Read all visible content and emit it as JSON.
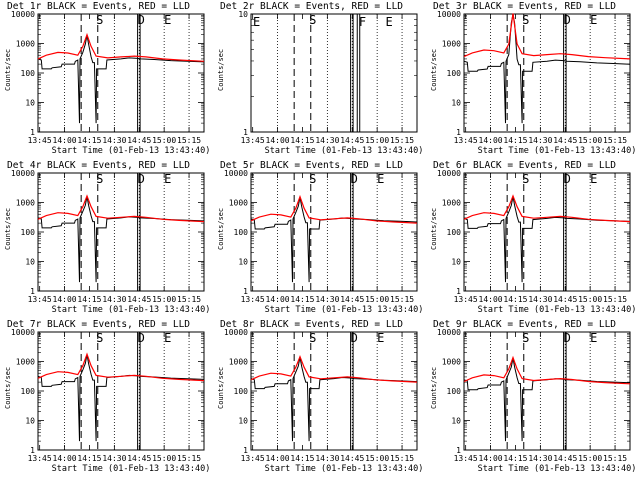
{
  "figure": {
    "title_suffix": "BLACK = Events, RED = LLD",
    "xlabel": "Start Time (01-Feb-13 13:43:40)",
    "ylabel": "Counts/sec",
    "x_ticks": [
      "13:45",
      "14:00",
      "14:15",
      "14:30",
      "14:45",
      "15:00",
      "15:15"
    ],
    "y_ticks": [
      "1",
      "10",
      "100",
      "1000",
      "10000"
    ],
    "colors": {
      "events": "#000000",
      "lld": "#ff0000",
      "axes": "#000000"
    }
  },
  "chart_data": [
    {
      "type": "line",
      "title": "Det 1r BLACK = Events, RED = LLD",
      "has_data": true,
      "base": 250,
      "peak": 1900,
      "red_plateau": 500,
      "flare_lbl": "S",
      "end_lbls": [
        "E"
      ],
      "ylim": [
        1,
        10000
      ],
      "ylog": true,
      "xlim": [
        "13:43:40",
        "15:24"
      ]
    },
    {
      "type": "line",
      "title": "Det 2r BLACK = Events, RED = LLD",
      "has_data": false,
      "base": 0,
      "peak": 0,
      "red_plateau": 0,
      "flare_lbl": "S",
      "end_lbls": [
        "F",
        "E"
      ],
      "top_lbl": "E",
      "ylim": [
        1,
        10
      ],
      "ylog": true,
      "xlim": [
        "13:43:40",
        "15:24"
      ]
    },
    {
      "type": "line",
      "title": "Det 3r BLACK = Events, RED = LLD",
      "has_data": true,
      "base": 210,
      "peak": 10000,
      "red_plateau": 600,
      "flare_lbl": "S",
      "end_lbls": [
        "E"
      ],
      "ylim": [
        1,
        10000
      ],
      "ylog": true,
      "xlim": [
        "13:43:40",
        "15:24"
      ]
    },
    {
      "type": "line",
      "title": "Det 4r BLACK = Events, RED = LLD",
      "has_data": true,
      "base": 250,
      "peak": 1600,
      "red_plateau": 450,
      "flare_lbl": "S",
      "end_lbls": [
        "E"
      ],
      "ylim": [
        1,
        10000
      ],
      "ylog": true,
      "xlim": [
        "13:43:40",
        "15:24"
      ]
    },
    {
      "type": "line",
      "title": "Det 5r BLACK = Events, RED = LLD",
      "has_data": true,
      "base": 230,
      "peak": 1500,
      "red_plateau": 400,
      "flare_lbl": "S",
      "end_lbls": [
        "E"
      ],
      "ylim": [
        1,
        10000
      ],
      "ylog": true,
      "xlim": [
        "13:43:40",
        "15:24"
      ]
    },
    {
      "type": "line",
      "title": "Det 6r BLACK = Events, RED = LLD",
      "has_data": true,
      "base": 240,
      "peak": 1600,
      "red_plateau": 450,
      "flare_lbl": "S",
      "end_lbls": [
        "E"
      ],
      "ylim": [
        1,
        10000
      ],
      "ylog": true,
      "xlim": [
        "13:43:40",
        "15:24"
      ]
    },
    {
      "type": "line",
      "title": "Det 7r BLACK = Events, RED = LLD",
      "has_data": true,
      "base": 260,
      "peak": 1700,
      "red_plateau": 450,
      "flare_lbl": "S",
      "end_lbls": [
        "E"
      ],
      "ylim": [
        1,
        10000
      ],
      "ylog": true,
      "xlim": [
        "13:43:40",
        "15:24"
      ]
    },
    {
      "type": "line",
      "title": "Det 8r BLACK = Events, RED = LLD",
      "has_data": true,
      "base": 220,
      "peak": 1400,
      "red_plateau": 400,
      "flare_lbl": "S",
      "end_lbls": [
        "E"
      ],
      "ylim": [
        1,
        10000
      ],
      "ylog": true,
      "xlim": [
        "13:43:40",
        "15:24"
      ]
    },
    {
      "type": "line",
      "title": "Det 9r BLACK = Events, RED = LLD",
      "has_data": true,
      "base": 200,
      "peak": 1300,
      "red_plateau": 350,
      "flare_lbl": "S",
      "end_lbls": [
        "E"
      ],
      "ylim": [
        1,
        10000
      ],
      "ylog": true,
      "xlim": [
        "13:43:40",
        "15:24"
      ]
    }
  ]
}
